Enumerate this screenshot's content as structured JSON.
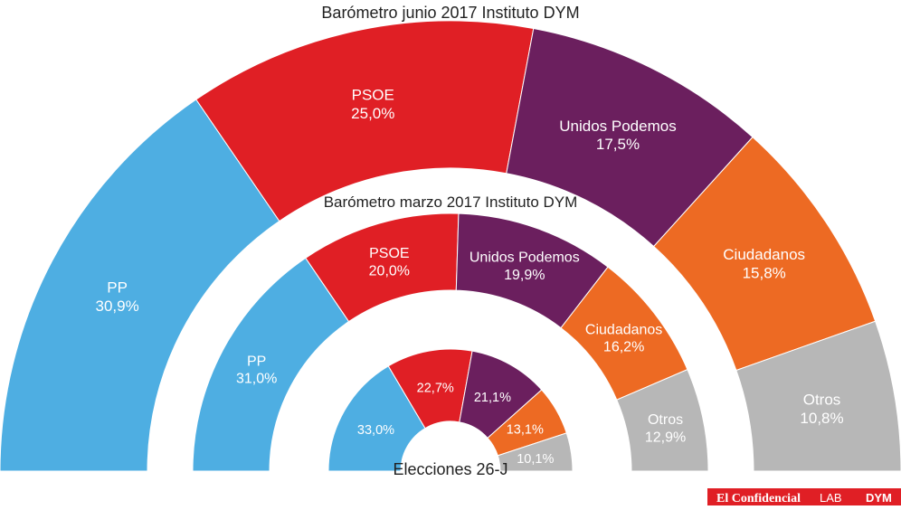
{
  "chart_data": {
    "type": "pie",
    "subtype": "concentric-semicircle-donut",
    "rings": [
      {
        "title": "Barómetro junio 2017 Instituto DYM",
        "segments": [
          {
            "name": "PP",
            "value": 30.9,
            "label": "30,9%",
            "color": "#4eaee2"
          },
          {
            "name": "PSOE",
            "value": 25.0,
            "label": "25,0%",
            "color": "#e01f25"
          },
          {
            "name": "Unidos Podemos",
            "value": 17.5,
            "label": "17,5%",
            "color": "#6b1f5e"
          },
          {
            "name": "Ciudadanos",
            "value": 15.8,
            "label": "15,8%",
            "color": "#ed6a23"
          },
          {
            "name": "Otros",
            "value": 10.8,
            "label": "10,8%",
            "color": "#b7b7b7"
          }
        ]
      },
      {
        "title": "Barómetro marzo 2017 Instituto DYM",
        "segments": [
          {
            "name": "PP",
            "value": 31.0,
            "label": "31,0%",
            "color": "#4eaee2"
          },
          {
            "name": "PSOE",
            "value": 20.0,
            "label": "20,0%",
            "color": "#e01f25"
          },
          {
            "name": "Unidos Podemos",
            "value": 19.9,
            "label": "19,9%",
            "color": "#6b1f5e"
          },
          {
            "name": "Ciudadanos",
            "value": 16.2,
            "label": "16,2%",
            "color": "#ed6a23"
          },
          {
            "name": "Otros",
            "value": 12.9,
            "label": "12,9%",
            "color": "#b7b7b7"
          }
        ]
      },
      {
        "title": "Elecciones 26-J",
        "segments": [
          {
            "name": "",
            "value": 33.0,
            "label": "33,0%",
            "color": "#4eaee2"
          },
          {
            "name": "",
            "value": 22.7,
            "label": "22,7%",
            "color": "#e01f25"
          },
          {
            "name": "",
            "value": 21.1,
            "label": "21,1%",
            "color": "#6b1f5e"
          },
          {
            "name": "",
            "value": 13.1,
            "label": "13,1%",
            "color": "#ed6a23"
          },
          {
            "name": "",
            "value": 10.1,
            "label": "10,1%",
            "color": "#b7b7b7"
          }
        ]
      }
    ]
  },
  "footer": {
    "brand_left": "El Confidencial",
    "brand_lab": "LAB",
    "brand_right": "DYM"
  },
  "colors": {
    "label_text": "#ffffff",
    "title_text": "#222222",
    "logo_bg": "#e01f25"
  }
}
